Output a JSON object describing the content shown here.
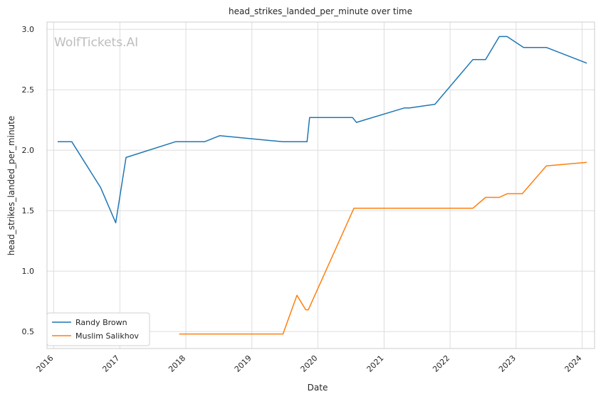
{
  "chart_data": {
    "type": "line",
    "title": "head_strikes_landed_per_minute over time",
    "xlabel": "Date",
    "ylabel": "head_strikes_landed_per_minute",
    "watermark": "WolfTickets.AI",
    "xlim": [
      "2015-11-25",
      "2024-03-10"
    ],
    "ylim": [
      0.36,
      3.06
    ],
    "x_ticks": [
      "2016",
      "2017",
      "2018",
      "2019",
      "2020",
      "2021",
      "2022",
      "2023",
      "2024"
    ],
    "y_ticks": [
      "0.5",
      "1.0",
      "1.5",
      "2.0",
      "2.5",
      "3.0"
    ],
    "grid": true,
    "legend_position": "lower-left",
    "series": [
      {
        "name": "Randy Brown",
        "color": "#1f77b4",
        "points": [
          [
            "2016-01-23",
            2.07
          ],
          [
            "2016-04-10",
            2.07
          ],
          [
            "2016-09-17",
            1.69
          ],
          [
            "2016-12-09",
            1.4
          ],
          [
            "2017-02-04",
            1.94
          ],
          [
            "2017-11-04",
            2.07
          ],
          [
            "2018-04-14",
            2.07
          ],
          [
            "2018-07-07",
            2.12
          ],
          [
            "2019-06-22",
            2.07
          ],
          [
            "2019-11-02",
            2.07
          ],
          [
            "2019-11-16",
            2.27
          ],
          [
            "2020-07-11",
            2.27
          ],
          [
            "2020-08-01",
            2.23
          ],
          [
            "2021-04-24",
            2.35
          ],
          [
            "2021-05-22",
            2.35
          ],
          [
            "2021-10-09",
            2.38
          ],
          [
            "2022-05-07",
            2.75
          ],
          [
            "2022-07-16",
            2.75
          ],
          [
            "2022-09-30",
            2.94
          ],
          [
            "2022-11-12",
            2.94
          ],
          [
            "2023-02-11",
            2.85
          ],
          [
            "2023-06-17",
            2.85
          ],
          [
            "2024-01-27",
            2.72
          ]
        ]
      },
      {
        "name": "Muslim Salikhov",
        "color": "#ff7f0e",
        "points": [
          [
            "2017-11-25",
            0.48
          ],
          [
            "2019-06-22",
            0.48
          ],
          [
            "2019-09-07",
            0.8
          ],
          [
            "2019-10-26",
            0.68
          ],
          [
            "2019-11-09",
            0.68
          ],
          [
            "2020-07-18",
            1.52
          ],
          [
            "2021-04-17",
            1.52
          ],
          [
            "2021-05-29",
            1.52
          ],
          [
            "2022-05-07",
            1.52
          ],
          [
            "2022-07-16",
            1.61
          ],
          [
            "2022-09-30",
            1.61
          ],
          [
            "2022-11-12",
            1.64
          ],
          [
            "2023-02-04",
            1.64
          ],
          [
            "2023-06-17",
            1.87
          ],
          [
            "2024-01-27",
            1.9
          ]
        ]
      }
    ]
  }
}
